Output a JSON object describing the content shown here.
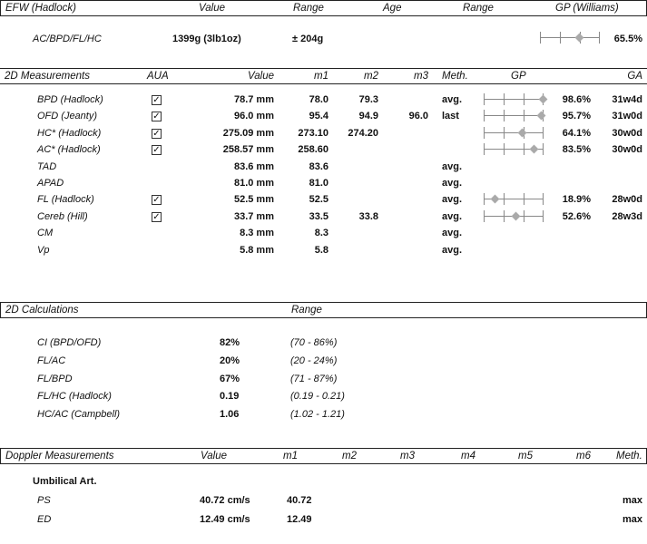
{
  "efw": {
    "header": {
      "title": "EFW (Hadlock)",
      "value": "Value",
      "range": "Range",
      "age": "Age",
      "range2": "Range",
      "gp": "GP (Williams)"
    },
    "row": {
      "name": "AC/BPD/FL/HC",
      "value": "1399g (3lb1oz)",
      "range": "± 204g",
      "gp": "65.5%",
      "gp_fraction": 0.655
    }
  },
  "measurements": {
    "header": {
      "title": "2D Measurements",
      "aua": "AUA",
      "value": "Value",
      "m1": "m1",
      "m2": "m2",
      "m3": "m3",
      "meth": "Meth.",
      "gp": "GP",
      "ga": "GA"
    },
    "check_glyph": "✓",
    "rows": [
      {
        "name": "BPD (Hadlock)",
        "aua": true,
        "value": "78.7 mm",
        "m1": "78.0",
        "m2": "79.3",
        "m3": "",
        "meth": "avg.",
        "gp": "98.6%",
        "gp_fraction": 0.986,
        "ga": "31w4d"
      },
      {
        "name": "OFD (Jeanty)",
        "aua": true,
        "value": "96.0 mm",
        "m1": "95.4",
        "m2": "94.9",
        "m3": "96.0",
        "meth": "last",
        "gp": "95.7%",
        "gp_fraction": 0.957,
        "ga": "31w0d"
      },
      {
        "name": "HC* (Hadlock)",
        "aua": true,
        "value": "275.09 mm",
        "m1": "273.10",
        "m2": "274.20",
        "m3": "",
        "meth": "",
        "gp": "64.1%",
        "gp_fraction": 0.641,
        "ga": "30w0d"
      },
      {
        "name": "AC* (Hadlock)",
        "aua": true,
        "value": "258.57 mm",
        "m1": "258.60",
        "m2": "",
        "m3": "",
        "meth": "",
        "gp": "83.5%",
        "gp_fraction": 0.835,
        "ga": "30w0d"
      },
      {
        "name": "TAD",
        "aua": false,
        "value": "83.6 mm",
        "m1": "83.6",
        "m2": "",
        "m3": "",
        "meth": "avg.",
        "gp": "",
        "ga": ""
      },
      {
        "name": "APAD",
        "aua": false,
        "value": "81.0 mm",
        "m1": "81.0",
        "m2": "",
        "m3": "",
        "meth": "avg.",
        "gp": "",
        "ga": ""
      },
      {
        "name": "FL (Hadlock)",
        "aua": true,
        "value": "52.5 mm",
        "m1": "52.5",
        "m2": "",
        "m3": "",
        "meth": "avg.",
        "gp": "18.9%",
        "gp_fraction": 0.189,
        "ga": "28w0d"
      },
      {
        "name": "Cereb (Hill)",
        "aua": true,
        "value": "33.7 mm",
        "m1": "33.5",
        "m2": "33.8",
        "m3": "",
        "meth": "avg.",
        "gp": "52.6%",
        "gp_fraction": 0.526,
        "ga": "28w3d"
      },
      {
        "name": "CM",
        "aua": false,
        "value": "8.3 mm",
        "m1": "8.3",
        "m2": "",
        "m3": "",
        "meth": "avg.",
        "gp": "",
        "ga": ""
      },
      {
        "name": "Vp",
        "aua": false,
        "value": "5.8 mm",
        "m1": "5.8",
        "m2": "",
        "m3": "",
        "meth": "avg.",
        "gp": "",
        "ga": ""
      }
    ]
  },
  "calculations": {
    "header": {
      "title": "2D Calculations",
      "range": "Range"
    },
    "rows": [
      {
        "name": "CI (BPD/OFD)",
        "value": "82%",
        "range": "(70 - 86%)"
      },
      {
        "name": "FL/AC",
        "value": "20%",
        "range": "(20 - 24%)"
      },
      {
        "name": "FL/BPD",
        "value": "67%",
        "range": "(71 - 87%)"
      },
      {
        "name": "FL/HC (Hadlock)",
        "value": "0.19",
        "range": "(0.19 - 0.21)"
      },
      {
        "name": "HC/AC (Campbell)",
        "value": "1.06",
        "range": "(1.02 - 1.21)"
      }
    ]
  },
  "doppler": {
    "header": {
      "title": "Doppler Measurements",
      "value": "Value",
      "m1": "m1",
      "m2": "m2",
      "m3": "m3",
      "m4": "m4",
      "m5": "m5",
      "m6": "m6",
      "meth": "Meth."
    },
    "group": "Umbilical Art.",
    "rows": [
      {
        "name": "PS",
        "value": "40.72 cm/s",
        "m1": "40.72",
        "meth": "max"
      },
      {
        "name": "ED",
        "value": "12.49 cm/s",
        "m1": "12.49",
        "meth": "max"
      }
    ]
  }
}
